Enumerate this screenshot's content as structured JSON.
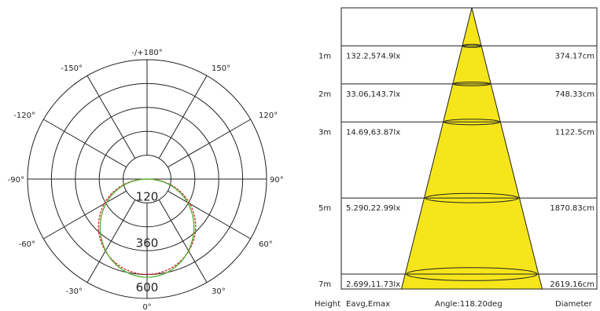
{
  "chart_data": [
    {
      "type": "polar",
      "angle_labels": [
        "-/+180°",
        "150°",
        "120°",
        "90°",
        "60°",
        "30°",
        "0°",
        "-30°",
        "-60°",
        "-90°",
        "-120°",
        "-150°"
      ],
      "radial_labels": [
        "120",
        "360",
        "600"
      ],
      "series": [
        {
          "color": "#d9232d",
          "intensity_at_0deg": 575,
          "lobe_half_angle_deg": 60
        },
        {
          "color": "#4caf2a",
          "intensity_at_0deg": 575,
          "lobe_half_angle_deg": 60
        }
      ]
    },
    {
      "type": "table",
      "beam_angle_label": "Angle:118.20deg",
      "footer": {
        "height": "Height",
        "eavg": "Eavg,Emax",
        "diameter": "Diameter"
      },
      "rows": [
        {
          "height": "1m",
          "height_m": 1,
          "illuminance": "132.2,574.9lx",
          "diameter": "374.17cm"
        },
        {
          "height": "2m",
          "height_m": 2,
          "illuminance": "33.06,143.7lx",
          "diameter": "748.33cm"
        },
        {
          "height": "3m",
          "height_m": 3,
          "illuminance": "14.69,63.87lx",
          "diameter": "1122.5cm"
        },
        {
          "height": "5m",
          "height_m": 5,
          "illuminance": "5.290,22.99lx",
          "diameter": "1870.83cm"
        },
        {
          "height": "7m",
          "height_m": 7,
          "illuminance": "2.699,11.73lx",
          "diameter": "2619.16cm"
        }
      ],
      "cone_color": "#f6e51a"
    }
  ]
}
